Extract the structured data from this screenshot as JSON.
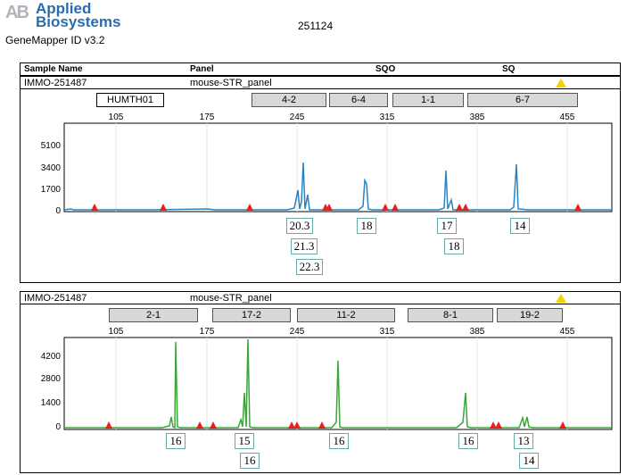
{
  "branding": {
    "logo_mark": "AB",
    "company_line1": "Applied",
    "company_line2": "Biosystems",
    "app_version": "GeneMapper ID v3.2"
  },
  "report_id": "251124",
  "header": {
    "sample_name": "Sample Name",
    "panel": "Panel",
    "sqo": "SQO",
    "sq": "SQ"
  },
  "colors": {
    "blue_trace": "#2a83c4",
    "green_trace": "#3aa63a",
    "size_std": "#e8201c",
    "warning": "#f2d300"
  },
  "panels": [
    {
      "sample": "IMMO-251487",
      "panel": "mouse-STR_panel",
      "markers": [
        "HUMTH01",
        "4-2",
        "6-4",
        "1-1",
        "6-7"
      ],
      "x_ticks": [
        "105",
        "175",
        "245",
        "315",
        "385",
        "455"
      ],
      "y_ticks": [
        "5100",
        "3400",
        "1700",
        "0"
      ],
      "alleles": [
        "20.3",
        "21.3",
        "22.3",
        "18",
        "17",
        "18",
        "14"
      ]
    },
    {
      "sample": "IMMO-251487",
      "panel": "mouse-STR_panel",
      "markers": [
        "2-1",
        "17-2",
        "11-2",
        "8-1",
        "19-2"
      ],
      "x_ticks": [
        "105",
        "175",
        "245",
        "315",
        "385",
        "455"
      ],
      "y_ticks": [
        "4200",
        "2800",
        "1400",
        "0"
      ],
      "alleles": [
        "16",
        "15",
        "16",
        "16",
        "16",
        "13",
        "14"
      ]
    }
  ]
}
